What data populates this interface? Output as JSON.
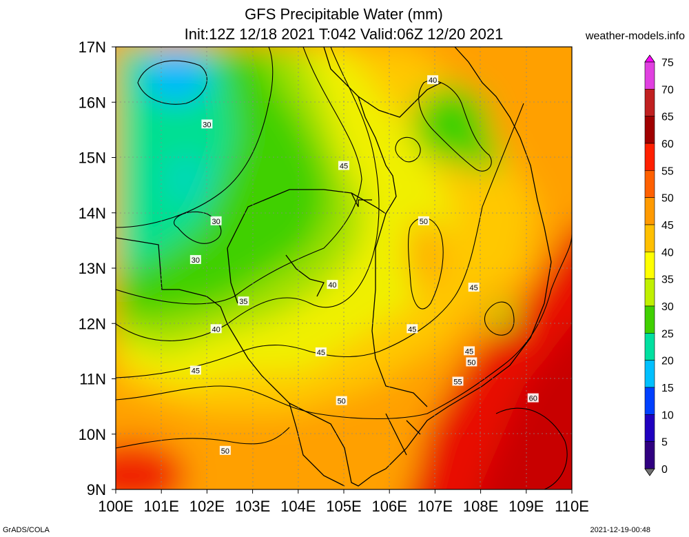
{
  "header": {
    "title": "GFS Precipitable Water (mm)",
    "subtitle": "Init:12Z 12/18 2021 T:042 Valid:06Z 12/20 2021",
    "credit": "weather-models.info"
  },
  "footer": {
    "left": "GrADS/COLA",
    "right": "2021-12-19-00:48"
  },
  "map": {
    "lat_labels": [
      "17N",
      "16N",
      "15N",
      "14N",
      "13N",
      "12N",
      "11N",
      "10N",
      "9N"
    ],
    "lon_labels": [
      "100E",
      "101E",
      "102E",
      "103E",
      "104E",
      "105E",
      "106E",
      "107E",
      "108E",
      "109E",
      "110E"
    ],
    "lat_range": [
      9,
      17
    ],
    "lon_range": [
      100,
      110
    ],
    "contour_labels": [
      {
        "text": "30",
        "lon": 102.0,
        "lat": 15.6
      },
      {
        "text": "30",
        "lon": 102.2,
        "lat": 13.85
      },
      {
        "text": "30",
        "lon": 101.75,
        "lat": 13.15
      },
      {
        "text": "35",
        "lon": 102.8,
        "lat": 12.4
      },
      {
        "text": "40",
        "lon": 102.2,
        "lat": 11.9
      },
      {
        "text": "40",
        "lon": 104.75,
        "lat": 12.7
      },
      {
        "text": "40",
        "lon": 106.95,
        "lat": 16.4
      },
      {
        "text": "45",
        "lon": 105.0,
        "lat": 14.85
      },
      {
        "text": "45",
        "lon": 104.5,
        "lat": 11.48
      },
      {
        "text": "45",
        "lon": 101.75,
        "lat": 11.15
      },
      {
        "text": "45",
        "lon": 107.85,
        "lat": 12.65
      },
      {
        "text": "45",
        "lon": 106.5,
        "lat": 11.9
      },
      {
        "text": "45",
        "lon": 107.75,
        "lat": 11.5
      },
      {
        "text": "50",
        "lon": 106.75,
        "lat": 13.85
      },
      {
        "text": "50",
        "lon": 107.8,
        "lat": 11.3
      },
      {
        "text": "50",
        "lon": 104.95,
        "lat": 10.6
      },
      {
        "text": "50",
        "lon": 102.4,
        "lat": 9.7
      },
      {
        "text": "55",
        "lon": 107.5,
        "lat": 10.95
      },
      {
        "text": "60",
        "lon": 109.15,
        "lat": 10.65
      }
    ]
  },
  "colorbar": {
    "labels": [
      "75",
      "70",
      "65",
      "60",
      "55",
      "50",
      "45",
      "40",
      "35",
      "30",
      "25",
      "20",
      "15",
      "10",
      "5",
      "0"
    ],
    "colors": [
      "#ff00ff",
      "#e040e0",
      "#c02020",
      "#a00000",
      "#ff2000",
      "#ff6000",
      "#ff9a00",
      "#ffc000",
      "#ffff00",
      "#c0f000",
      "#40d000",
      "#00e0a0",
      "#00c0ff",
      "#0040ff",
      "#2000c0",
      "#300080",
      "#707070"
    ]
  }
}
